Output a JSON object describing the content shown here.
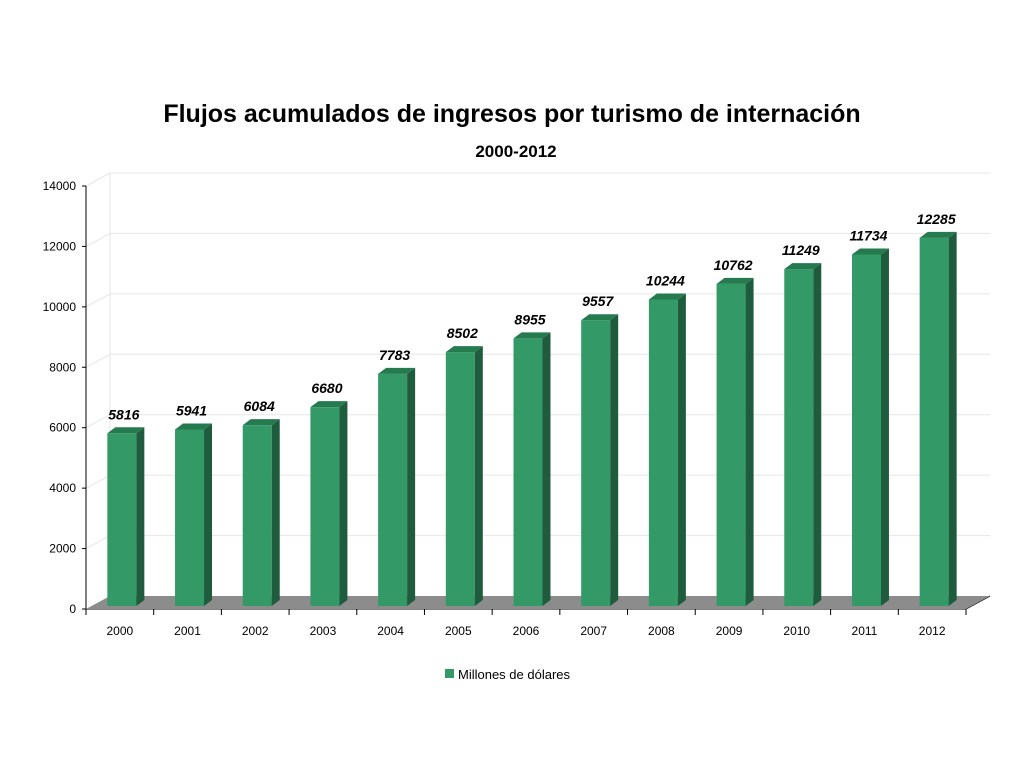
{
  "chart_data": {
    "type": "bar",
    "title": "Flujos acumulados de ingresos por turismo de internación",
    "subtitle": "2000-2012",
    "xlabel": "",
    "ylabel": "",
    "categories": [
      "2000",
      "2001",
      "2002",
      "2003",
      "2004",
      "2005",
      "2006",
      "2007",
      "2008",
      "2009",
      "2010",
      "2011",
      "2012"
    ],
    "series": [
      {
        "name": "Millones de dólares",
        "values": [
          5816,
          5941,
          6084,
          6680,
          7783,
          8502,
          8955,
          9557,
          10244,
          10762,
          11249,
          11734,
          12285
        ],
        "color": "#339966"
      }
    ],
    "ylim": [
      0,
      14000
    ],
    "yticks": [
      "0",
      "2000",
      "4000",
      "6000",
      "8000",
      "10000",
      "12000",
      "14000"
    ],
    "grid": true,
    "legend": "bottom",
    "data_labels": true,
    "colors": {
      "bar_front": "#339966",
      "bar_side": "#1f5c3d",
      "bar_top": "#267a4f",
      "floor": "#8c8c8c"
    }
  }
}
